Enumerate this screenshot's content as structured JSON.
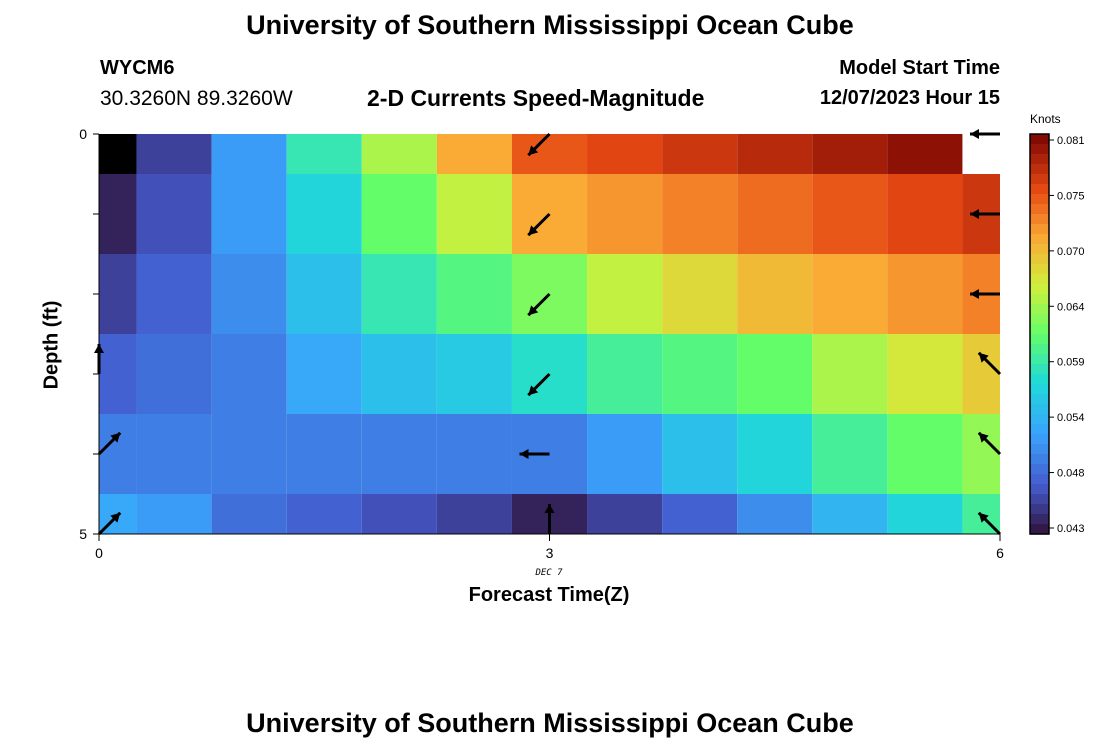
{
  "header": {
    "title": "University of Southern Mississippi Ocean Cube",
    "station_id": "WYCM6",
    "coords": "30.3260N  89.3260W",
    "chart_title": "2-D Currents Speed-Magnitude",
    "model_label": "Model Start Time",
    "model_time": "12/07/2023 Hour 15"
  },
  "footer": {
    "title": "University of Southern Mississippi Ocean Cube"
  },
  "chart_data": {
    "type": "heatmap",
    "xlabel": "Forecast Time(Z)",
    "ylabel": "Depth (ft)",
    "x_ticks": [
      "0",
      "3",
      "6"
    ],
    "y_ticks": [
      "0",
      "5"
    ],
    "date_label": "DEC 7",
    "xlim": [
      0,
      6
    ],
    "ylim": [
      0,
      5
    ],
    "colorbar": {
      "unit": "Knots",
      "ticks": [
        "0.081",
        "0.075",
        "0.070",
        "0.064",
        "0.059",
        "0.054",
        "0.048",
        "0.043"
      ],
      "min": 0.043,
      "max": 0.081
    },
    "x": [
      0,
      0.5,
      1,
      1.5,
      2,
      2.5,
      3,
      3.5,
      4,
      4.5,
      5,
      5.5,
      6
    ],
    "depth": [
      0,
      1,
      2,
      3,
      4,
      5
    ],
    "speed_knots": [
      [
        0.041,
        0.046,
        0.052,
        0.059,
        0.065,
        0.071,
        0.075,
        0.076,
        0.077,
        0.078,
        0.079,
        0.08,
        null
      ],
      [
        0.044,
        0.047,
        0.052,
        0.057,
        0.062,
        0.066,
        0.071,
        0.072,
        0.073,
        0.074,
        0.075,
        0.076,
        0.077
      ],
      [
        0.046,
        0.048,
        0.051,
        0.055,
        0.059,
        0.061,
        0.063,
        0.066,
        0.068,
        0.07,
        0.071,
        0.072,
        0.073
      ],
      [
        0.048,
        0.049,
        0.05,
        0.053,
        0.055,
        0.056,
        0.058,
        0.06,
        0.061,
        0.062,
        0.065,
        0.067,
        0.069
      ],
      [
        0.05,
        0.05,
        0.05,
        0.05,
        0.05,
        0.05,
        0.05,
        0.052,
        0.055,
        0.057,
        0.06,
        0.062,
        0.064
      ],
      [
        0.053,
        0.052,
        0.049,
        0.048,
        0.047,
        0.046,
        0.044,
        0.046,
        0.048,
        0.051,
        0.054,
        0.057,
        0.06
      ]
    ],
    "arrows": [
      {
        "x": 3,
        "depth": 0,
        "dir": "SW"
      },
      {
        "x": 6,
        "depth": 0,
        "dir": "W"
      },
      {
        "x": 3,
        "depth": 1,
        "dir": "SW"
      },
      {
        "x": 6,
        "depth": 1,
        "dir": "W"
      },
      {
        "x": 3,
        "depth": 2,
        "dir": "SW"
      },
      {
        "x": 6,
        "depth": 2,
        "dir": "W"
      },
      {
        "x": 0,
        "depth": 3,
        "dir": "N"
      },
      {
        "x": 3,
        "depth": 3,
        "dir": "SW"
      },
      {
        "x": 6,
        "depth": 3,
        "dir": "NW"
      },
      {
        "x": 0,
        "depth": 4,
        "dir": "NE"
      },
      {
        "x": 3,
        "depth": 4,
        "dir": "W"
      },
      {
        "x": 6,
        "depth": 4,
        "dir": "NW"
      },
      {
        "x": 0,
        "depth": 5,
        "dir": "NE"
      },
      {
        "x": 3,
        "depth": 5,
        "dir": "N"
      },
      {
        "x": 6,
        "depth": 5,
        "dir": "NW"
      }
    ]
  }
}
